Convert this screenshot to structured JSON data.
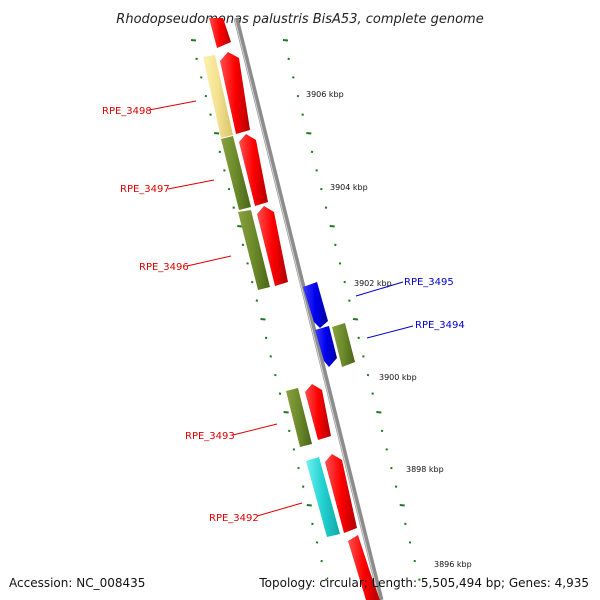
{
  "title": "Rhodopseudomonas palustris BisA53, complete genome",
  "accession": "Accession: NC_008435",
  "summary": "Topology: circular; Length: 5,505,494 bp; Genes: 4,935",
  "colors": {
    "red_label": "#e00000",
    "blue_label": "#0000cc",
    "tick_green": "#1f7a1f",
    "backbone": "#8c8c8c"
  },
  "kbp_ticks": [
    {
      "label": "3906 kbp"
    },
    {
      "label": "3904 kbp"
    },
    {
      "label": "3902 kbp"
    },
    {
      "label": "3900 kbp"
    },
    {
      "label": "3898 kbp"
    },
    {
      "label": "3896 kbp"
    }
  ],
  "gene_labels": [
    {
      "text": "RPE_3498",
      "strand": "left"
    },
    {
      "text": "RPE_3497",
      "strand": "left"
    },
    {
      "text": "RPE_3496",
      "strand": "left"
    },
    {
      "text": "RPE_3495",
      "strand": "right"
    },
    {
      "text": "RPE_3494",
      "strand": "right"
    },
    {
      "text": "RPE_3493",
      "strand": "left"
    },
    {
      "text": "RPE_3492",
      "strand": "left"
    }
  ]
}
